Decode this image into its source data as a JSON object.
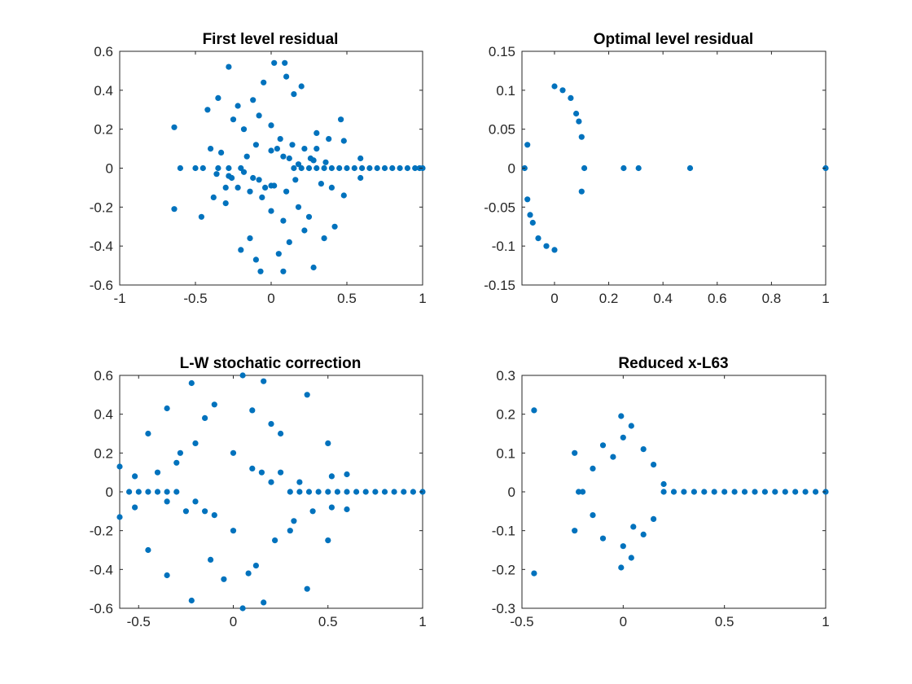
{
  "figure": {
    "background": "#ffffff",
    "axes_color": "#262626",
    "marker_color": "#0072BD"
  },
  "chart_data": [
    {
      "type": "scatter",
      "title": "First level residual",
      "xlim": [
        -1,
        1
      ],
      "ylim": [
        -0.6,
        0.6
      ],
      "xticks": [
        -1,
        -0.5,
        0,
        0.5,
        1
      ],
      "yticks": [
        -0.6,
        -0.4,
        -0.2,
        0,
        0.2,
        0.4,
        0.6
      ],
      "xtick_labels": [
        "-1",
        "-0.5",
        "0",
        "0.5",
        "1"
      ],
      "ytick_labels": [
        "-0.6",
        "-0.4",
        "-0.2",
        "0",
        "0.2",
        "0.4",
        "0.6"
      ],
      "grid": false,
      "series": [
        {
          "x": [
            -0.64,
            -0.64,
            0.02,
            0.09,
            -0.07,
            0.08,
            -0.28,
            0.28,
            0.1,
            -0.1,
            0.2,
            -0.2,
            -0.35,
            0.35,
            -0.42,
            0.42,
            0.46,
            -0.46,
            -0.12,
            0.15,
            -0.22,
            0.22,
            -0.05,
            0.05,
            0.3,
            -0.3,
            0.38,
            -0.38,
            0.12,
            -0.14,
            -0.6,
            -0.5,
            -0.45,
            -0.35,
            -0.28,
            -0.2,
            0.15,
            0.2,
            0.25,
            0.3,
            0.35,
            0.4,
            0.45,
            0.5,
            0.55,
            0.6,
            0.65,
            0.7,
            0.75,
            0.8,
            0.85,
            0.9,
            0.95,
            0.98,
            1.0,
            0.48,
            0.48,
            0.59,
            0.59,
            -0.25,
            0.25,
            -0.18,
            0.18,
            -0.08,
            0.08,
            0.0,
            0.0,
            0.14,
            -0.14,
            -0.33,
            0.33,
            -0.4,
            0.4,
            0.06,
            -0.06,
            -0.16,
            0.16,
            0.22,
            -0.22,
            0.28,
            -0.28,
            -0.1,
            0.1,
            0.04,
            -0.04,
            0.3,
            -0.3,
            0.12,
            -0.12,
            0.36,
            -0.36,
            0.0,
            0.0,
            0.08,
            -0.08,
            0.18,
            -0.18,
            0.26,
            -0.26,
            0.02
          ],
          "y": [
            0.21,
            -0.21,
            0.54,
            0.54,
            -0.53,
            -0.53,
            0.52,
            -0.51,
            0.47,
            -0.47,
            0.42,
            -0.42,
            0.36,
            -0.36,
            0.3,
            -0.3,
            0.25,
            -0.25,
            0.35,
            0.38,
            0.32,
            -0.32,
            0.44,
            -0.44,
            0.18,
            -0.18,
            0.15,
            -0.15,
            -0.38,
            -0.36,
            0.0,
            0.0,
            0.0,
            0.0,
            0.0,
            0.0,
            0.0,
            0.0,
            0.0,
            0.0,
            0.0,
            0.0,
            0.0,
            0.0,
            0.0,
            0.0,
            0.0,
            0.0,
            0.0,
            0.0,
            0.0,
            0.0,
            0.0,
            0.0,
            0.0,
            0.14,
            -0.14,
            0.05,
            -0.05,
            0.25,
            -0.25,
            0.2,
            -0.2,
            0.27,
            -0.27,
            0.22,
            -0.22,
            0.12,
            -0.12,
            0.08,
            -0.08,
            0.1,
            -0.1,
            0.15,
            -0.15,
            0.06,
            -0.06,
            0.1,
            -0.1,
            0.04,
            -0.04,
            0.12,
            -0.12,
            0.1,
            -0.1,
            0.1,
            -0.1,
            0.05,
            -0.05,
            0.03,
            -0.03,
            0.09,
            -0.09,
            0.06,
            -0.06,
            0.02,
            -0.02,
            0.05,
            -0.05,
            -0.09
          ]
        }
      ]
    },
    {
      "type": "scatter",
      "title": "Optimal level residual",
      "xlim": [
        -0.12,
        1
      ],
      "ylim": [
        -0.15,
        0.15
      ],
      "xticks": [
        0,
        0.2,
        0.4,
        0.6,
        0.8,
        1
      ],
      "yticks": [
        -0.15,
        -0.1,
        -0.05,
        0,
        0.05,
        0.1,
        0.15
      ],
      "xtick_labels": [
        "0",
        "0.2",
        "0.4",
        "0.6",
        "0.8",
        "1"
      ],
      "ytick_labels": [
        "-0.15",
        "-0.1",
        "-0.05",
        "0",
        "0.05",
        "0.1",
        "0.15"
      ],
      "grid": false,
      "series": [
        {
          "x": [
            0.255,
            0.31,
            0.5,
            1.0,
            0.0,
            0.0,
            0.03,
            -0.03,
            0.06,
            -0.06,
            0.08,
            -0.08,
            0.1,
            -0.1,
            0.11,
            -0.11,
            0.1,
            -0.1,
            0.09,
            -0.09
          ],
          "y": [
            0.0,
            0.0,
            0.0,
            0.0,
            0.105,
            -0.105,
            0.1,
            -0.1,
            0.09,
            -0.09,
            0.07,
            -0.07,
            0.04,
            -0.04,
            0.0,
            0.0,
            -0.03,
            0.03,
            0.06,
            -0.06
          ]
        }
      ]
    },
    {
      "type": "scatter",
      "title": "L-W stochatic correction",
      "xlim": [
        -0.6,
        1
      ],
      "ylim": [
        -0.6,
        0.6
      ],
      "xticks": [
        -0.5,
        0,
        0.5,
        1
      ],
      "yticks": [
        -0.6,
        -0.4,
        -0.2,
        0,
        0.2,
        0.4,
        0.6
      ],
      "xtick_labels": [
        "-0.5",
        "0",
        "0.5",
        "1"
      ],
      "ytick_labels": [
        "-0.6",
        "-0.4",
        "-0.2",
        "0",
        "0.2",
        "0.4",
        "0.6"
      ],
      "grid": false,
      "series": [
        {
          "x": [
            -0.6,
            -0.6,
            0.05,
            0.05,
            -0.22,
            0.16,
            -0.22,
            0.16,
            -0.35,
            0.39,
            -0.35,
            0.39,
            -0.45,
            0.5,
            -0.45,
            0.5,
            -0.52,
            0.52,
            -0.52,
            0.52,
            -0.55,
            -0.5,
            -0.45,
            -0.4,
            -0.35,
            -0.3,
            0.3,
            0.35,
            0.4,
            0.45,
            0.5,
            0.55,
            0.6,
            0.65,
            0.7,
            0.75,
            0.8,
            0.85,
            0.9,
            0.95,
            1.0,
            0.6,
            0.6,
            -0.1,
            0.1,
            -0.15,
            0.2,
            0.25,
            -0.28,
            0.3,
            -0.05,
            0.08,
            0.12,
            -0.12,
            -0.2,
            0.22,
            -0.3,
            0.32,
            -0.4,
            0.42,
            0.0,
            0.0,
            0.15,
            -0.15,
            0.25,
            -0.25,
            0.35,
            -0.35,
            0.1,
            -0.1,
            0.2,
            -0.2
          ],
          "y": [
            0.13,
            -0.13,
            0.6,
            -0.6,
            0.56,
            0.57,
            -0.56,
            -0.57,
            0.43,
            0.5,
            -0.43,
            -0.5,
            0.3,
            0.25,
            -0.3,
            -0.25,
            0.08,
            0.08,
            -0.08,
            -0.08,
            0.0,
            0.0,
            0.0,
            0.0,
            0.0,
            0.0,
            0.0,
            0.0,
            0.0,
            0.0,
            0.0,
            0.0,
            0.0,
            0.0,
            0.0,
            0.0,
            0.0,
            0.0,
            0.0,
            0.0,
            0.0,
            0.09,
            -0.09,
            0.45,
            0.42,
            0.38,
            0.35,
            0.3,
            0.2,
            -0.2,
            -0.45,
            -0.42,
            -0.38,
            -0.35,
            0.25,
            -0.25,
            0.15,
            -0.15,
            0.1,
            -0.1,
            0.2,
            -0.2,
            0.1,
            -0.1,
            0.1,
            -0.1,
            0.05,
            -0.05,
            0.12,
            -0.12,
            0.05,
            -0.05
          ]
        }
      ]
    },
    {
      "type": "scatter",
      "title": "Reduced x-L63",
      "xlim": [
        -0.5,
        1
      ],
      "ylim": [
        -0.3,
        0.3
      ],
      "xticks": [
        -0.5,
        0,
        0.5,
        1
      ],
      "yticks": [
        -0.3,
        -0.2,
        -0.1,
        0,
        0.1,
        0.2,
        0.3
      ],
      "xtick_labels": [
        "-0.5",
        "0",
        "0.5",
        "1"
      ],
      "ytick_labels": [
        "-0.3",
        "-0.2",
        "-0.1",
        "0",
        "0.1",
        "0.2",
        "0.3"
      ],
      "grid": false,
      "series": [
        {
          "x": [
            -0.44,
            -0.44,
            -0.24,
            -0.24,
            -0.01,
            -0.01,
            0.04,
            0.04,
            -0.1,
            0.1,
            -0.1,
            0.1,
            -0.22,
            -0.2,
            0.2,
            0.25,
            0.3,
            0.35,
            0.4,
            0.45,
            0.5,
            0.55,
            0.6,
            0.65,
            0.7,
            0.75,
            0.8,
            0.85,
            0.9,
            0.95,
            1.0,
            0.15,
            -0.15,
            0.15,
            -0.15,
            0.2,
            -0.05,
            0.05,
            0.0,
            0.0
          ],
          "y": [
            0.21,
            -0.21,
            0.1,
            -0.1,
            0.195,
            -0.195,
            0.17,
            -0.17,
            0.12,
            0.11,
            -0.12,
            -0.11,
            0.0,
            0.0,
            0.0,
            0.0,
            0.0,
            0.0,
            0.0,
            0.0,
            0.0,
            0.0,
            0.0,
            0.0,
            0.0,
            0.0,
            0.0,
            0.0,
            0.0,
            0.0,
            0.0,
            0.07,
            0.06,
            -0.07,
            -0.06,
            0.02,
            0.09,
            -0.09,
            0.14,
            -0.14
          ]
        }
      ]
    }
  ]
}
